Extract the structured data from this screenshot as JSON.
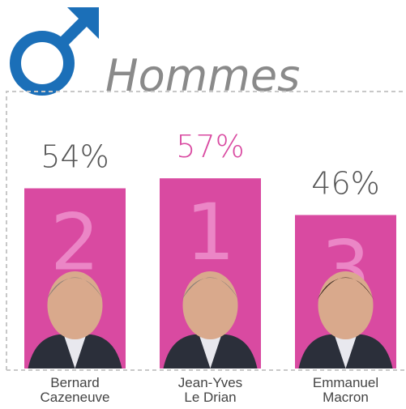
{
  "chart_data": {
    "type": "bar",
    "title": "Hommes",
    "categories": [
      "Bernard\nCazeneuve",
      "Jean-Yves\nLe Drian",
      "Emmanuel\nMacron"
    ],
    "values": [
      54,
      57,
      46
    ],
    "value_labels": [
      "54%",
      "57%",
      "46%"
    ],
    "ranks": [
      2,
      1,
      3
    ],
    "color": "#d94aa1"
  }
}
